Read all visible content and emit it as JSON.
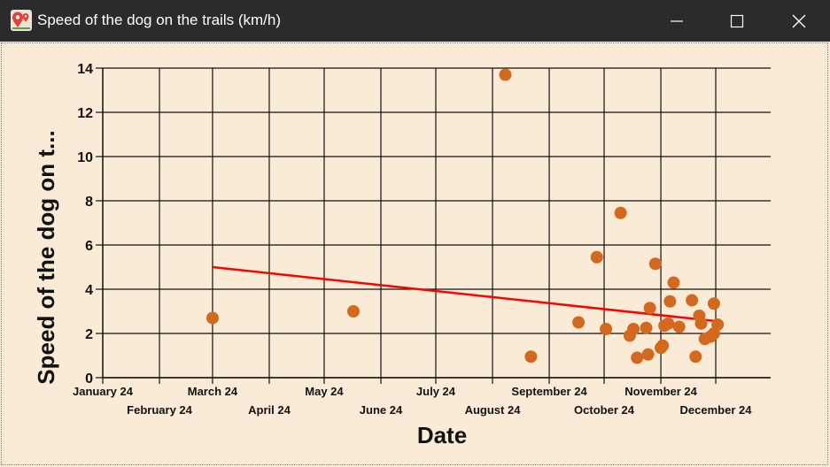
{
  "window": {
    "title": "Speed of the dog on the trails (km/h)",
    "icon": "map-pin-icon",
    "controls": [
      "minimize-icon",
      "maximize-icon",
      "close-icon"
    ]
  },
  "chart_data": {
    "type": "scatter",
    "xlabel": "Date",
    "ylabel": "Speed of the dog on t...",
    "ylim": [
      0,
      14
    ],
    "yticks": [
      "0",
      "2",
      "4",
      "6",
      "8",
      "10",
      "12",
      "14"
    ],
    "xlim": [
      "2024-01-01",
      "2024-12-31"
    ],
    "xticks": [
      {
        "label": "January 24",
        "date": "2024-01-01"
      },
      {
        "label": "February 24",
        "date": "2024-02-01"
      },
      {
        "label": "March 24",
        "date": "2024-03-01"
      },
      {
        "label": "April 24",
        "date": "2024-04-01"
      },
      {
        "label": "May 24",
        "date": "2024-05-01"
      },
      {
        "label": "June 24",
        "date": "2024-06-01"
      },
      {
        "label": "July 24",
        "date": "2024-07-01"
      },
      {
        "label": "August 24",
        "date": "2024-08-01"
      },
      {
        "label": "September 24",
        "date": "2024-09-01"
      },
      {
        "label": "October 24",
        "date": "2024-10-01"
      },
      {
        "label": "November 24",
        "date": "2024-11-01"
      },
      {
        "label": "December 24",
        "date": "2024-12-01"
      }
    ],
    "grid": true,
    "point_color": "#d2691e",
    "trend_color": "#ff0000",
    "series": [
      {
        "points": [
          {
            "x": "2024-03-01",
            "y": 2.7
          },
          {
            "x": "2024-05-17",
            "y": 3.0
          },
          {
            "x": "2024-08-08",
            "y": 13.7
          },
          {
            "x": "2024-08-22",
            "y": 0.95
          },
          {
            "x": "2024-09-17",
            "y": 2.5
          },
          {
            "x": "2024-09-27",
            "y": 5.45
          },
          {
            "x": "2024-10-02",
            "y": 2.2
          },
          {
            "x": "2024-10-10",
            "y": 7.45
          },
          {
            "x": "2024-10-15",
            "y": 1.9
          },
          {
            "x": "2024-10-17",
            "y": 2.2
          },
          {
            "x": "2024-10-19",
            "y": 0.9
          },
          {
            "x": "2024-10-24",
            "y": 2.25
          },
          {
            "x": "2024-10-25",
            "y": 1.05
          },
          {
            "x": "2024-10-26",
            "y": 3.15
          },
          {
            "x": "2024-10-29",
            "y": 5.15
          },
          {
            "x": "2024-11-01",
            "y": 1.35
          },
          {
            "x": "2024-11-02",
            "y": 1.45
          },
          {
            "x": "2024-11-03",
            "y": 2.35
          },
          {
            "x": "2024-11-05",
            "y": 2.45
          },
          {
            "x": "2024-11-06",
            "y": 3.45
          },
          {
            "x": "2024-11-08",
            "y": 4.3
          },
          {
            "x": "2024-11-11",
            "y": 2.3
          },
          {
            "x": "2024-11-18",
            "y": 3.5
          },
          {
            "x": "2024-11-20",
            "y": 0.95
          },
          {
            "x": "2024-11-22",
            "y": 2.8
          },
          {
            "x": "2024-11-23",
            "y": 2.45
          },
          {
            "x": "2024-11-25",
            "y": 1.75
          },
          {
            "x": "2024-11-28",
            "y": 1.85
          },
          {
            "x": "2024-11-30",
            "y": 3.35
          },
          {
            "x": "2024-11-30",
            "y": 2.0
          },
          {
            "x": "2024-12-02",
            "y": 2.4
          }
        ]
      }
    ],
    "trendline": {
      "x": [
        "2024-03-01",
        "2024-12-02"
      ],
      "y": [
        5.0,
        2.55
      ]
    }
  }
}
